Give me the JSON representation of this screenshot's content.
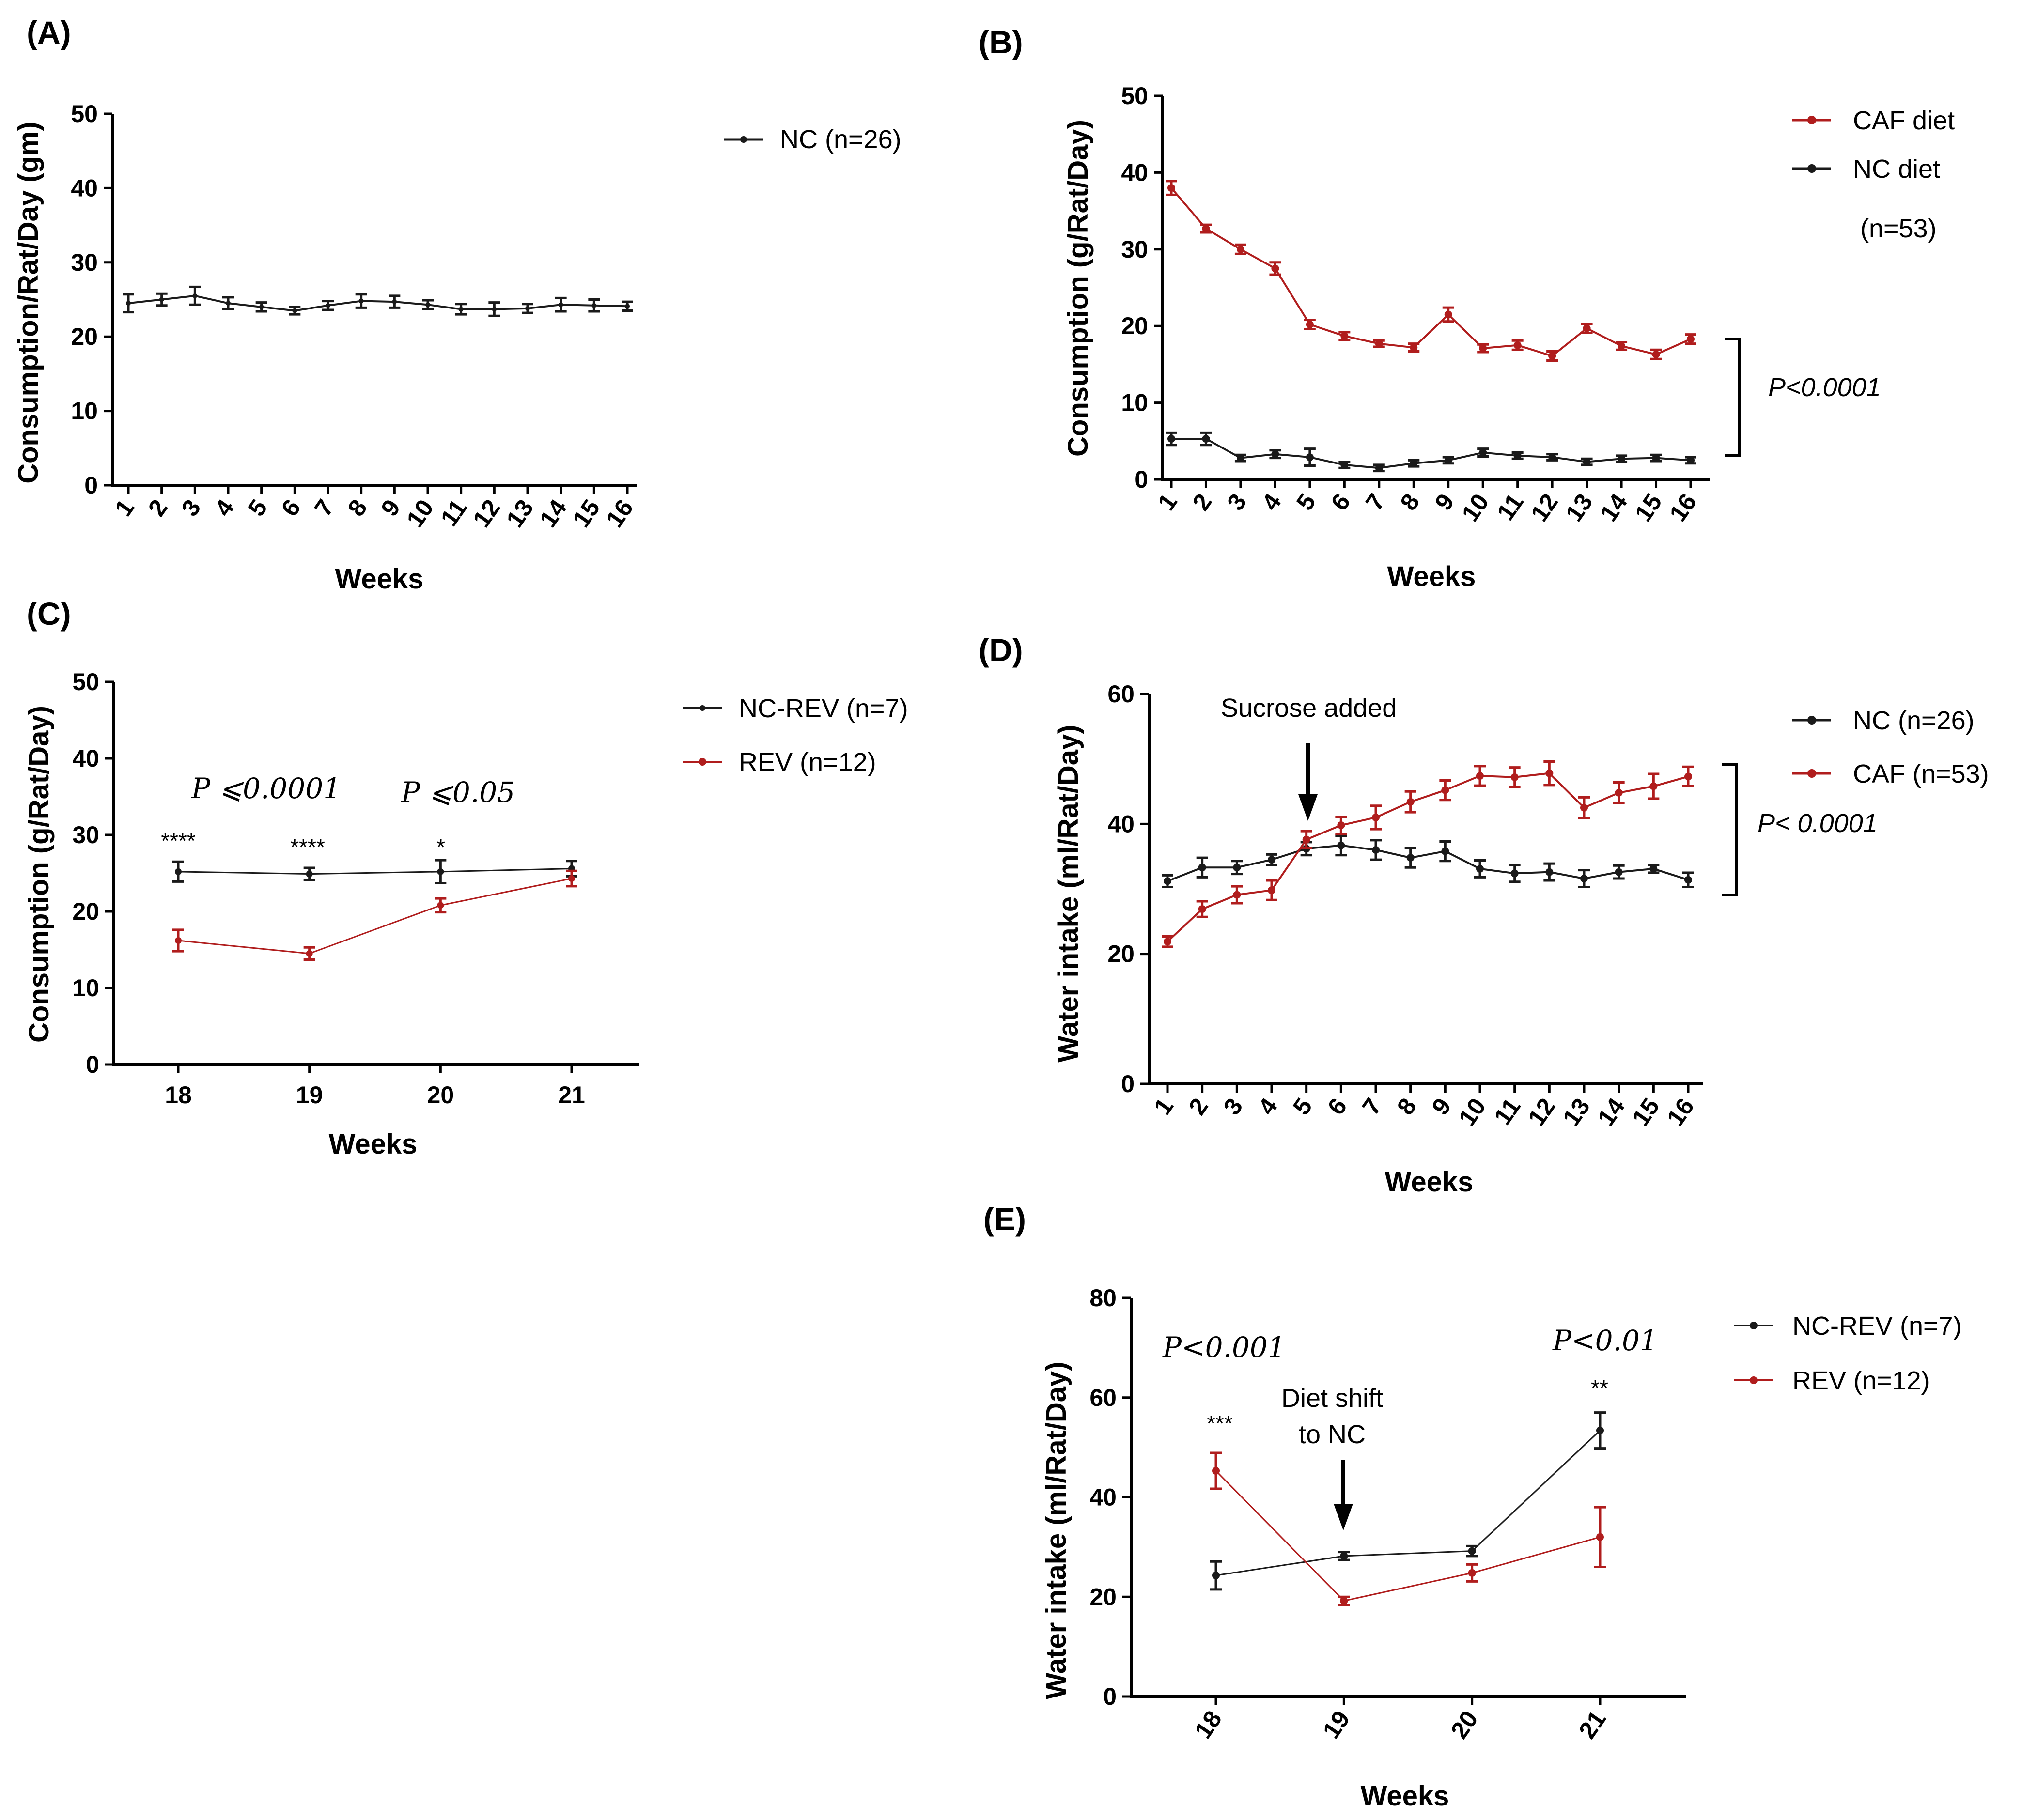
{
  "colors": {
    "nc": "#1a1a1a",
    "caf": "#b01d1d"
  },
  "chart_data": [
    {
      "panel": "(A)",
      "type": "line",
      "xlabel": "Weeks",
      "ylabel": "Consumption/Rat/Day (gm)",
      "ylim": [
        0,
        50
      ],
      "yticks": [
        0,
        10,
        20,
        30,
        40,
        50
      ],
      "x": [
        1,
        2,
        3,
        4,
        5,
        6,
        7,
        8,
        9,
        10,
        11,
        12,
        13,
        14,
        15,
        16
      ],
      "x_tick_labels": [
        "1",
        "2",
        "3",
        "4",
        "5",
        "6",
        "7",
        "8",
        "9",
        "10",
        "11",
        "12",
        "13",
        "14",
        "15",
        "16"
      ],
      "series": [
        {
          "name": "NC (n=26)",
          "color": "#1a1a1a",
          "values": [
            24.5,
            25.0,
            25.5,
            24.5,
            24.0,
            23.5,
            24.2,
            24.8,
            24.7,
            24.3,
            23.7,
            23.7,
            23.8,
            24.3,
            24.2,
            24.1
          ],
          "errors": [
            1.2,
            0.8,
            1.2,
            0.8,
            0.6,
            0.5,
            0.6,
            0.9,
            0.8,
            0.6,
            0.7,
            0.9,
            0.6,
            0.9,
            0.8,
            0.6
          ]
        }
      ],
      "annotations": []
    },
    {
      "panel": "(B)",
      "type": "line",
      "xlabel": "Weeks",
      "ylabel": "Consumption (g/Rat/Day)",
      "ylim": [
        0,
        50
      ],
      "yticks": [
        0,
        10,
        20,
        30,
        40,
        50
      ],
      "x": [
        1,
        2,
        3,
        4,
        5,
        6,
        7,
        8,
        9,
        10,
        11,
        12,
        13,
        14,
        15,
        16
      ],
      "x_tick_labels": [
        "1",
        "2",
        "3",
        "4",
        "5",
        "6",
        "7",
        "8",
        "9",
        "10",
        "11",
        "12",
        "13",
        "14",
        "15",
        "16"
      ],
      "series": [
        {
          "name": "CAF diet",
          "color": "#b01d1d",
          "values": [
            38.0,
            32.7,
            30.0,
            27.5,
            20.2,
            18.7,
            17.7,
            17.2,
            21.5,
            17.1,
            17.5,
            16.1,
            19.7,
            17.4,
            16.3,
            18.3
          ],
          "errors": [
            0.9,
            0.5,
            0.6,
            0.8,
            0.6,
            0.5,
            0.4,
            0.5,
            0.9,
            0.5,
            0.6,
            0.6,
            0.6,
            0.5,
            0.6,
            0.6
          ]
        },
        {
          "name": "NC diet",
          "color": "#1a1a1a",
          "values": [
            5.3,
            5.3,
            2.8,
            3.3,
            2.9,
            1.9,
            1.5,
            2.1,
            2.5,
            3.5,
            3.1,
            2.9,
            2.3,
            2.7,
            2.8,
            2.5
          ],
          "errors": [
            0.8,
            0.8,
            0.4,
            0.5,
            1.1,
            0.4,
            0.4,
            0.4,
            0.4,
            0.5,
            0.4,
            0.4,
            0.4,
            0.4,
            0.4,
            0.4
          ]
        }
      ],
      "legend_note": "(n=53)",
      "annotations": [
        {
          "text": "P<0.0001"
        }
      ]
    },
    {
      "panel": "(C)",
      "type": "line",
      "xlabel": "Weeks",
      "ylabel": "Consumption (g/Rat/Day)",
      "ylim": [
        0,
        50
      ],
      "yticks": [
        0,
        10,
        20,
        30,
        40,
        50
      ],
      "x": [
        18,
        19,
        20,
        21
      ],
      "x_tick_labels": [
        "18",
        "19",
        "20",
        "21"
      ],
      "series": [
        {
          "name": "NC-REV (n=7)",
          "color": "#1a1a1a",
          "values": [
            25.2,
            24.9,
            25.2,
            25.6
          ],
          "errors": [
            1.3,
            0.8,
            1.5,
            1.0
          ]
        },
        {
          "name": "REV (n=12)",
          "color": "#b01d1d",
          "values": [
            16.2,
            14.5,
            20.8,
            24.3
          ],
          "errors": [
            1.4,
            0.8,
            0.9,
            1.0
          ]
        }
      ],
      "annotations": [
        {
          "text": "P ⩽0.0001"
        },
        {
          "text": "P ⩽0.05"
        },
        {
          "text": "****"
        },
        {
          "text": "****"
        },
        {
          "text": "*"
        }
      ]
    },
    {
      "panel": "(D)",
      "type": "line",
      "xlabel": "Weeks",
      "ylabel": "Water intake (ml/Rat/Day)",
      "ylim": [
        0,
        60
      ],
      "yticks": [
        0,
        20,
        40,
        60
      ],
      "x": [
        1,
        2,
        3,
        4,
        5,
        6,
        7,
        8,
        9,
        10,
        11,
        12,
        13,
        14,
        15,
        16
      ],
      "x_tick_labels": [
        "1",
        "2",
        "3",
        "4",
        "5",
        "6",
        "7",
        "8",
        "9",
        "10",
        "11",
        "12",
        "13",
        "14",
        "15",
        "16"
      ],
      "series": [
        {
          "name": "NC (n=26)",
          "color": "#1a1a1a",
          "values": [
            31.2,
            33.3,
            33.3,
            34.5,
            36.2,
            36.7,
            36.0,
            34.8,
            35.8,
            33.1,
            32.4,
            32.6,
            31.6,
            32.6,
            33.1,
            31.4
          ],
          "errors": [
            0.9,
            1.5,
            1.0,
            0.8,
            1.0,
            1.5,
            1.5,
            1.5,
            1.5,
            1.3,
            1.3,
            1.3,
            1.3,
            1.0,
            0.6,
            1.1
          ]
        },
        {
          "name": "CAF (n=53)",
          "color": "#b01d1d",
          "values": [
            21.9,
            26.9,
            29.1,
            29.8,
            37.6,
            39.8,
            41.0,
            43.4,
            45.2,
            47.4,
            47.2,
            47.8,
            42.5,
            44.8,
            45.8,
            47.3
          ],
          "errors": [
            0.8,
            1.2,
            1.3,
            1.5,
            1.3,
            1.3,
            1.8,
            1.6,
            1.5,
            1.5,
            1.5,
            1.8,
            1.6,
            1.6,
            1.9,
            1.5
          ]
        }
      ],
      "annotations": [
        {
          "text": "Sucrose added"
        },
        {
          "text": "P< 0.0001"
        }
      ]
    },
    {
      "panel": "(E)",
      "type": "line",
      "xlabel": "Weeks",
      "ylabel": "Water intake (ml/Rat/Day)",
      "ylim": [
        0,
        80
      ],
      "yticks": [
        0,
        20,
        40,
        60,
        80
      ],
      "x": [
        18,
        19,
        20,
        21
      ],
      "x_tick_labels": [
        "18",
        "19",
        "20",
        "21"
      ],
      "series": [
        {
          "name": "NC-REV (n=7)",
          "color": "#1a1a1a",
          "values": [
            24.3,
            28.2,
            29.2,
            53.4
          ],
          "errors": [
            2.8,
            0.8,
            1.0,
            3.6
          ]
        },
        {
          "name": "REV (n=12)",
          "color": "#b01d1d",
          "values": [
            45.3,
            19.2,
            24.8,
            32.0
          ],
          "errors": [
            3.6,
            0.8,
            1.7,
            6.0
          ]
        }
      ],
      "annotations": [
        {
          "text": "P<0.001"
        },
        {
          "text": "P<0.01"
        },
        {
          "text": "Diet shift"
        },
        {
          "text": "to NC"
        },
        {
          "text": "***"
        },
        {
          "text": "**"
        }
      ]
    }
  ]
}
